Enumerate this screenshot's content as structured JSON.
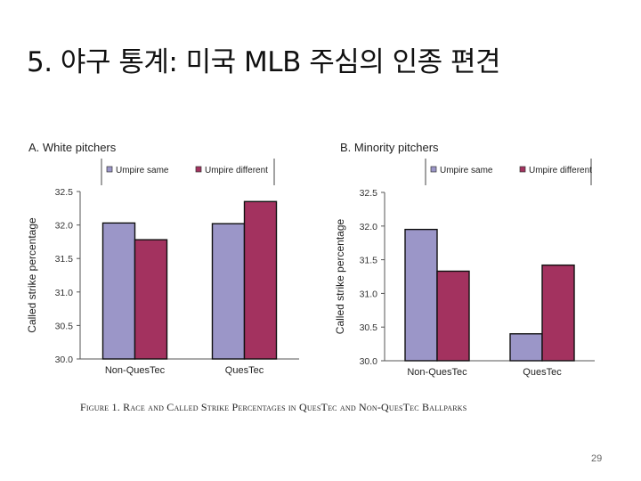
{
  "slide": {
    "title": "5. 야구 통계: 미국 MLB 주심의 인종 편견",
    "caption": "Figure 1. Race and Called Strike Percentages in QuesTec and Non-QuesTec Ballparks",
    "page_number": "29"
  },
  "colors": {
    "umpire_same": "#9b96c8",
    "umpire_different": "#a3325f"
  },
  "chart_data": [
    {
      "type": "bar",
      "title": "A. White pitchers",
      "ylabel": "Called strike percentage",
      "categories": [
        "Non-QuesTec",
        "QuesTec"
      ],
      "series": [
        {
          "name": "Umpire same",
          "values": [
            32.03,
            32.02
          ]
        },
        {
          "name": "Umpire different",
          "values": [
            31.78,
            32.35
          ]
        }
      ],
      "ylim": [
        30.0,
        32.5
      ],
      "yticks": [
        "30.0",
        "30.5",
        "31.0",
        "31.5",
        "32.0",
        "32.5"
      ],
      "legend": "top"
    },
    {
      "type": "bar",
      "title": "B. Minority pitchers",
      "ylabel": "Called strike percentage",
      "categories": [
        "Non-QuesTec",
        "QuesTec"
      ],
      "series": [
        {
          "name": "Umpire same",
          "values": [
            31.95,
            30.4
          ]
        },
        {
          "name": "Umpire different",
          "values": [
            31.33,
            31.42
          ]
        }
      ],
      "ylim": [
        30.0,
        32.5
      ],
      "yticks": [
        "30.0",
        "30.5",
        "31.0",
        "31.5",
        "32.0",
        "32.5"
      ],
      "legend": "top"
    }
  ]
}
